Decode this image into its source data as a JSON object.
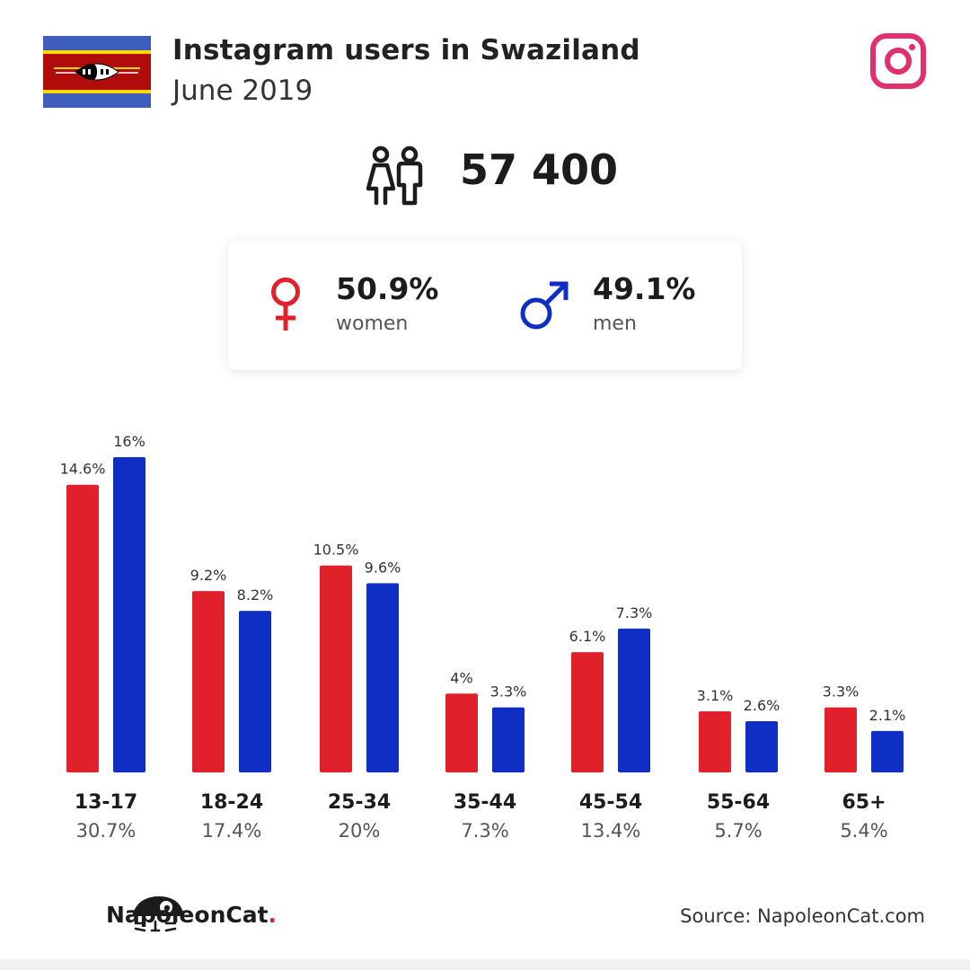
{
  "header": {
    "title": "Instagram users in Swaziland",
    "subtitle": "June 2019",
    "flag_icon": "swaziland-flag-icon",
    "platform_icon": "instagram-icon"
  },
  "summary": {
    "total_users": "57 400",
    "icon": "users-icon"
  },
  "gender": {
    "women": {
      "pct": "50.9%",
      "label": "women",
      "icon": "female-symbol-icon",
      "color": "#e0202a"
    },
    "men": {
      "pct": "49.1%",
      "label": "men",
      "icon": "male-symbol-icon",
      "color": "#0f2ec3"
    }
  },
  "chart_data": {
    "type": "bar",
    "categories": [
      "13-17",
      "18-24",
      "25-34",
      "35-44",
      "45-54",
      "55-64",
      "65+"
    ],
    "category_totals": [
      "30.7%",
      "17.4%",
      "20%",
      "7.3%",
      "13.4%",
      "5.7%",
      "5.4%"
    ],
    "series": [
      {
        "name": "women",
        "color": "#e0202a",
        "values": [
          14.6,
          9.2,
          10.5,
          4,
          6.1,
          3.1,
          3.3
        ],
        "labels": [
          "14.6%",
          "9.2%",
          "10.5%",
          "4%",
          "6.1%",
          "3.1%",
          "3.3%"
        ]
      },
      {
        "name": "men",
        "color": "#0f2ec3",
        "values": [
          16,
          8.2,
          9.6,
          3.3,
          7.3,
          2.6,
          2.1
        ],
        "labels": [
          "16%",
          "8.2%",
          "9.6%",
          "3.3%",
          "7.3%",
          "2.6%",
          "2.1%"
        ]
      }
    ],
    "ylim": [
      0,
      16
    ],
    "grid": false
  },
  "footer": {
    "brand_name": "NapoleonCat",
    "brand_dot": ".",
    "brand_icon": "napoleoncat-logo-icon",
    "source": "Source: NapoleonCat.com"
  }
}
